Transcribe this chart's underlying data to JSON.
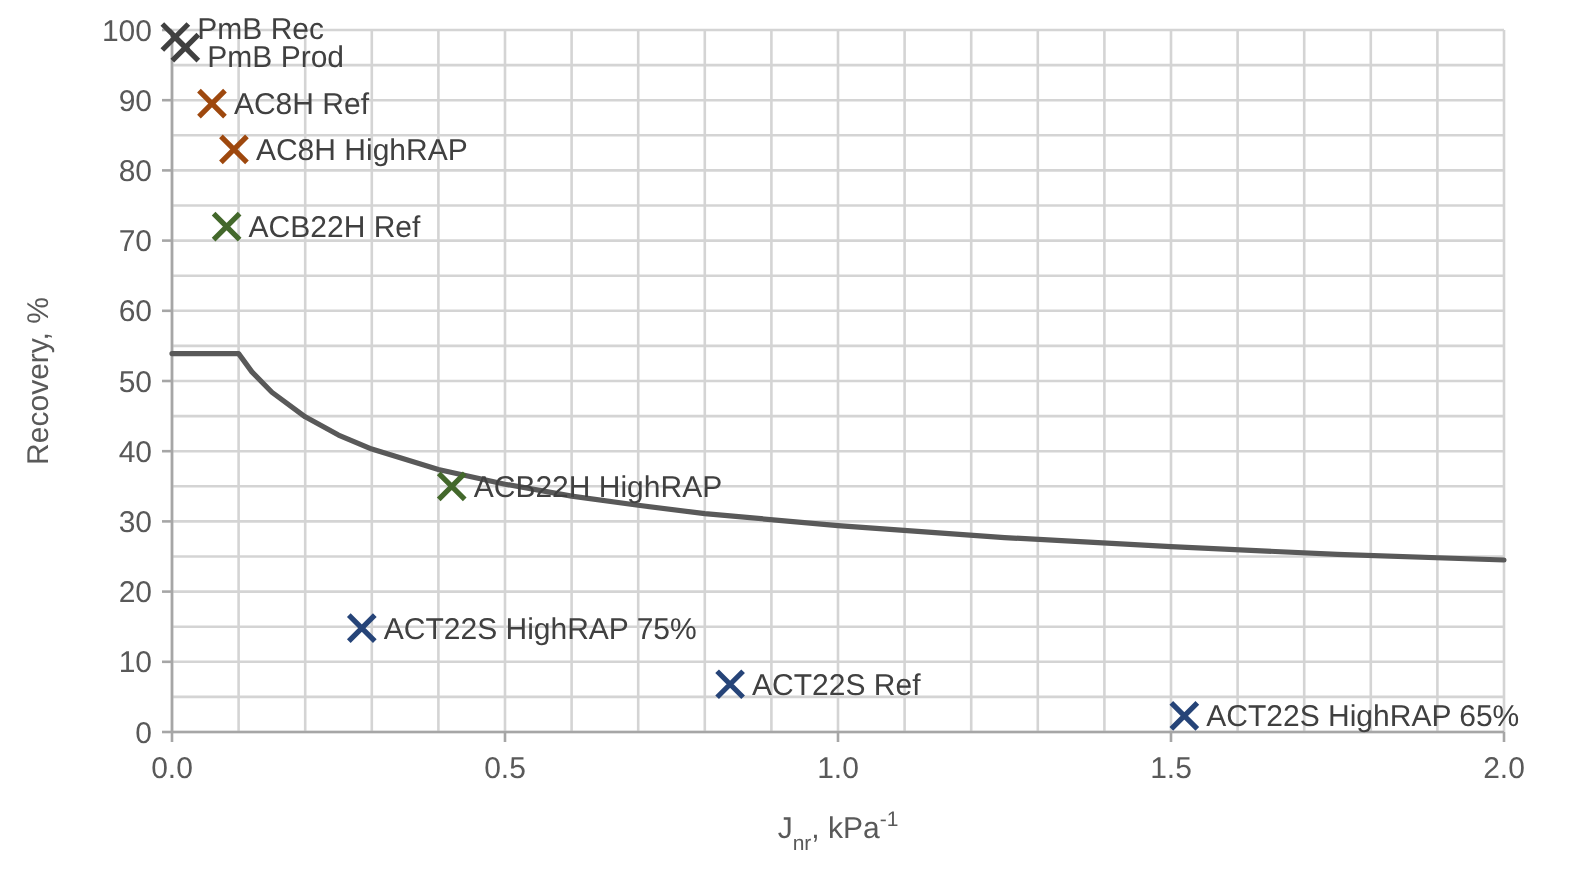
{
  "chart_data": {
    "type": "scatter",
    "xlabel": "J$_{nr}$, kPa$^{-1}$",
    "ylabel": "Recovery, %",
    "xlim": [
      0,
      2
    ],
    "ylim": [
      0,
      100
    ],
    "xticks": [
      {
        "value": 0,
        "label": "0.0"
      },
      {
        "value": 0.1,
        "label": null
      },
      {
        "value": 0.2,
        "label": null
      },
      {
        "value": 0.3,
        "label": null
      },
      {
        "value": 0.4,
        "label": null
      },
      {
        "value": 0.5,
        "label": "0.5"
      },
      {
        "value": 0.6,
        "label": null
      },
      {
        "value": 0.7,
        "label": null
      },
      {
        "value": 0.8,
        "label": null
      },
      {
        "value": 0.9,
        "label": null
      },
      {
        "value": 1,
        "label": "1.0"
      },
      {
        "value": 1.1,
        "label": null
      },
      {
        "value": 1.2,
        "label": null
      },
      {
        "value": 1.3,
        "label": null
      },
      {
        "value": 1.4,
        "label": null
      },
      {
        "value": 1.5,
        "label": "1.5"
      },
      {
        "value": 1.6,
        "label": null
      },
      {
        "value": 1.7,
        "label": null
      },
      {
        "value": 1.8,
        "label": null
      },
      {
        "value": 1.9,
        "label": null
      },
      {
        "value": 2,
        "label": "2.0"
      }
    ],
    "yticks": [
      0,
      {
        "value": 5,
        "label": null
      },
      10,
      {
        "value": 15,
        "label": null
      },
      20,
      {
        "value": 25,
        "label": null
      },
      30,
      {
        "value": 35,
        "label": null
      },
      40,
      {
        "value": 45,
        "label": null
      },
      50,
      {
        "value": 55,
        "label": null
      },
      60,
      {
        "value": 65,
        "label": null
      },
      70,
      {
        "value": 75,
        "label": null
      },
      80,
      {
        "value": 85,
        "label": null
      },
      90,
      {
        "value": 95,
        "label": null
      },
      100
    ],
    "grid": true,
    "marker": "cross",
    "series": [
      {
        "type": "line",
        "marker": "none",
        "color": "#595959",
        "x": [
          0,
          0.1,
          0.12,
          0.15,
          0.2,
          0.25,
          0.3,
          0.4,
          0.5,
          0.6,
          0.7,
          0.8,
          1,
          1.25,
          1.5,
          1.75,
          2
        ],
        "values": [
          53.9,
          53.9,
          51.3,
          48.4,
          44.9,
          42.3,
          40.3,
          37.4,
          35.3,
          33.6,
          32.3,
          31.1,
          29.4,
          27.7,
          26.4,
          25.3,
          24.5
        ]
      },
      {
        "name": "PmB Rec",
        "color": "#404040",
        "x": [
          0.005
        ],
        "values": [
          99
        ]
      },
      {
        "name": "PmB Prod",
        "color": "#404040",
        "x": [
          0.02
        ],
        "values": [
          97.5
        ]
      },
      {
        "name": "AC8H Ref",
        "color": "#9e480e",
        "x": [
          0.06
        ],
        "values": [
          89.5
        ]
      },
      {
        "name": "AC8H HighRAP",
        "color": "#9e480e",
        "x": [
          0.093
        ],
        "values": [
          83
        ]
      },
      {
        "name": "ACB22H Ref",
        "color": "#43682b",
        "x": [
          0.082
        ],
        "values": [
          72
        ]
      },
      {
        "name": "ACB22H HighRAP",
        "color": "#43682b",
        "x": [
          0.42
        ],
        "values": [
          35
        ]
      },
      {
        "name": "ACT22S HighRAP 75%",
        "color": "#264478",
        "x": [
          0.285
        ],
        "values": [
          14.8
        ]
      },
      {
        "name": "ACT22S Ref",
        "color": "#264478",
        "x": [
          0.838
        ],
        "values": [
          6.8
        ]
      },
      {
        "name": "ACT22S HighRAP 65%",
        "color": "#264478",
        "x": [
          1.52
        ],
        "values": [
          2.3
        ]
      }
    ]
  }
}
